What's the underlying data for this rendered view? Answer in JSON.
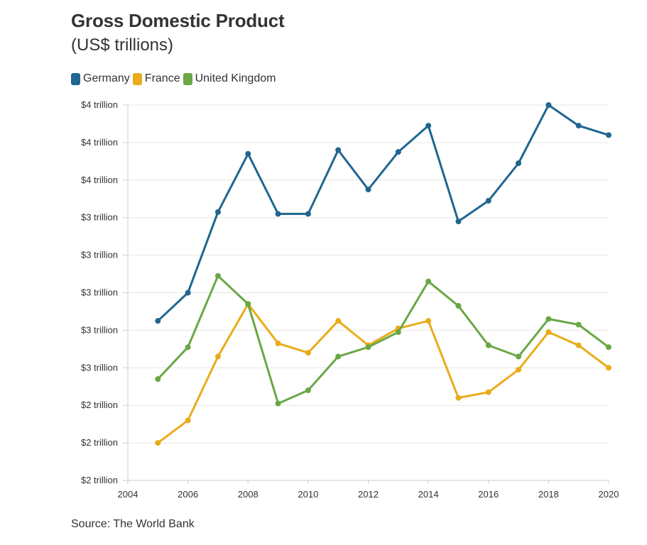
{
  "chart_data": {
    "type": "line",
    "title": "Gross Domestic Product",
    "subtitle": "(US$ trillions)",
    "source": "Source: The World Bank",
    "x": [
      2005,
      2006,
      2007,
      2008,
      2009,
      2010,
      2011,
      2012,
      2013,
      2014,
      2015,
      2016,
      2017,
      2018,
      2019,
      2020
    ],
    "xlim": [
      2004,
      2020
    ],
    "x_ticks": [
      {
        "value": 2004,
        "label": "2004"
      },
      {
        "value": 2006,
        "label": "2006"
      },
      {
        "value": 2008,
        "label": "2008"
      },
      {
        "value": 2010,
        "label": "2010"
      },
      {
        "value": 2012,
        "label": "2012"
      },
      {
        "value": 2014,
        "label": "2014"
      },
      {
        "value": 2016,
        "label": "2016"
      },
      {
        "value": 2018,
        "label": "2018"
      },
      {
        "value": 2020,
        "label": "2020"
      }
    ],
    "ylim": [
      2.0,
      4.0
    ],
    "y_ticks": [
      {
        "value": 2.0,
        "label": "$2 trillion"
      },
      {
        "value": 2.2,
        "label": "$2 trillion"
      },
      {
        "value": 2.4,
        "label": "$2 trillion"
      },
      {
        "value": 2.6,
        "label": "$3 trillion"
      },
      {
        "value": 2.8,
        "label": "$3 trillion"
      },
      {
        "value": 3.0,
        "label": "$3 trillion"
      },
      {
        "value": 3.2,
        "label": "$3 trillion"
      },
      {
        "value": 3.4,
        "label": "$3 trillion"
      },
      {
        "value": 3.6,
        "label": "$4 trillion"
      },
      {
        "value": 3.8,
        "label": "$4 trillion"
      },
      {
        "value": 4.0,
        "label": "$4 trillion"
      }
    ],
    "grid": true,
    "legend_position": "top-left",
    "series": [
      {
        "name": "Germany",
        "color": "#1f6690",
        "values": [
          2.85,
          3.0,
          3.43,
          3.74,
          3.42,
          3.42,
          3.76,
          3.55,
          3.75,
          3.89,
          3.38,
          3.49,
          3.69,
          4.0,
          3.89,
          3.84
        ]
      },
      {
        "name": "France",
        "color": "#e9ac1a",
        "values": [
          2.2,
          2.32,
          2.66,
          2.94,
          2.73,
          2.68,
          2.85,
          2.72,
          2.81,
          2.85,
          2.44,
          2.47,
          2.59,
          2.79,
          2.72,
          2.6
        ]
      },
      {
        "name": "United Kingdom",
        "color": "#6aa746",
        "values": [
          2.54,
          2.71,
          3.09,
          2.94,
          2.41,
          2.48,
          2.66,
          2.71,
          2.79,
          3.06,
          2.93,
          2.72,
          2.66,
          2.86,
          2.83,
          2.71
        ]
      }
    ]
  }
}
